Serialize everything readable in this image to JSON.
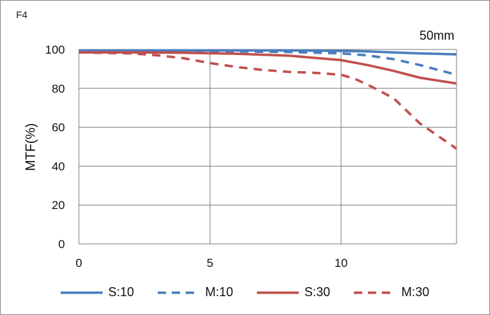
{
  "corner_label": "F4",
  "focal_length": "50mm",
  "colors": {
    "S10": "#4a7ebf",
    "M10": "#4a7ebf",
    "S30": "#c0504d",
    "M30": "#c0504d",
    "grid": "#7f7f7f"
  },
  "chart_data": {
    "type": "line",
    "title": "",
    "xlabel": "",
    "ylabel": "MTF(%)",
    "xlim": [
      0,
      14.4
    ],
    "ylim": [
      0,
      100
    ],
    "xticks": [
      "0",
      "5",
      "10"
    ],
    "yticks": [
      "0",
      "20",
      "40",
      "60",
      "80",
      "100"
    ],
    "grid": true,
    "legend_position": "bottom",
    "series": [
      {
        "name": "S:10",
        "color": "#4a7ebf",
        "dash": false,
        "x": [
          0,
          2,
          4,
          6,
          8,
          10,
          11,
          12,
          13,
          14.4
        ],
        "y": [
          99.5,
          99.5,
          99.5,
          99.5,
          99.5,
          99.3,
          99.0,
          98.5,
          98.0,
          97.5
        ]
      },
      {
        "name": "M:10",
        "color": "#4a7ebf",
        "dash": true,
        "x": [
          0,
          2,
          4,
          6,
          8,
          10,
          11,
          12,
          13,
          14.4
        ],
        "y": [
          99.3,
          99.3,
          99.2,
          99.0,
          98.7,
          98.0,
          97.0,
          95.0,
          92.0,
          87.0
        ]
      },
      {
        "name": "S:30",
        "color": "#c0504d",
        "dash": false,
        "x": [
          0,
          2,
          4,
          6,
          8,
          10,
          11,
          12,
          13,
          14.4
        ],
        "y": [
          98.5,
          98.5,
          98.3,
          97.8,
          96.8,
          94.5,
          92.0,
          89.0,
          85.5,
          82.5
        ]
      },
      {
        "name": "M:30",
        "color": "#c0504d",
        "dash": true,
        "x": [
          0,
          2,
          3,
          4,
          5,
          6,
          7,
          8,
          9,
          10,
          10.5,
          11,
          12,
          13,
          14.4
        ],
        "y": [
          98.5,
          98.0,
          97.0,
          95.5,
          93.0,
          91.0,
          89.5,
          88.5,
          88.0,
          87.0,
          85.0,
          82.0,
          75.0,
          62.0,
          49.0
        ]
      }
    ]
  }
}
